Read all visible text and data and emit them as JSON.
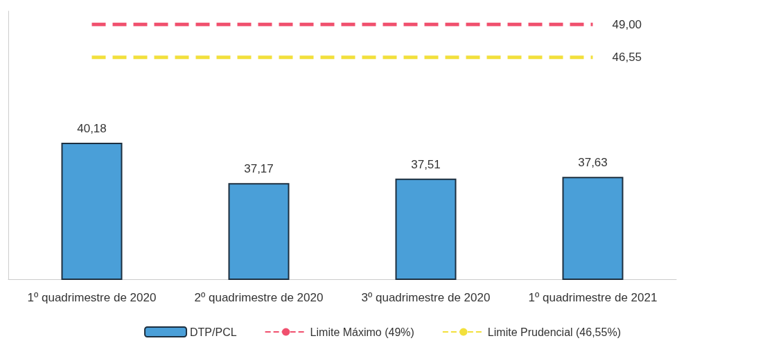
{
  "chart_data": {
    "type": "bar",
    "categories": [
      "1º quadrimestre de 2020",
      "2º quadrimestre de 2020",
      "3º quadrimestre de 2020",
      "1º quadrimestre de 2021"
    ],
    "series": [
      {
        "name": "DTP/PCL",
        "color": "#4a9fd8",
        "values": [
          40.18,
          37.17,
          37.51,
          37.63
        ],
        "value_labels": [
          "40,18",
          "37,17",
          "37,51",
          "37,63"
        ]
      },
      {
        "name": "Limite Máximo (49%)",
        "type": "line",
        "color": "#f0506e",
        "line_style": "dashed",
        "values": [
          49,
          49,
          49,
          49
        ],
        "value_labels": [
          null,
          null,
          null,
          "49,00"
        ]
      },
      {
        "name": "Limite Prudencial (46,55%)",
        "type": "line",
        "color": "#f2e03c",
        "line_style": "dashed",
        "values": [
          46.55,
          46.55,
          46.55,
          46.55
        ],
        "value_labels": [
          null,
          null,
          null,
          "46,55"
        ]
      }
    ],
    "ylim": [
      30,
      50
    ],
    "tick_labels": "x",
    "grid": false,
    "legend": "bottom",
    "marker": "none"
  }
}
